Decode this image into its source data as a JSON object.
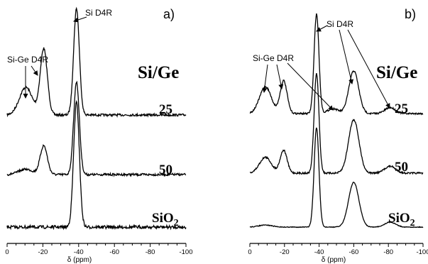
{
  "chart_data": [
    {
      "panel": "a)",
      "type": "line",
      "xlabel": "δ (ppm)",
      "xlim": [
        0,
        -100
      ],
      "xticks": [
        0,
        -20,
        -40,
        -60,
        -80,
        -100
      ],
      "group_label": "Si/Ge",
      "annotations": [
        "Si-Ge D4R",
        "Si D4R"
      ],
      "series": [
        {
          "name": "25",
          "peaks": [
            {
              "x": -10.5,
              "h": 0.26,
              "w": 3.6
            },
            {
              "x": -20.5,
              "h": 0.62,
              "w": 2.0
            },
            {
              "x": -38.8,
              "h": 1.0,
              "w": 1.6
            }
          ]
        },
        {
          "name": "50",
          "peaks": [
            {
              "x": -10.5,
              "h": 0.05,
              "w": 4.0
            },
            {
              "x": -20.5,
              "h": 0.27,
              "w": 2.0
            },
            {
              "x": -38.8,
              "h": 0.87,
              "w": 1.6
            }
          ]
        },
        {
          "name": "SiO2",
          "peaks": [
            {
              "x": -38.8,
              "h": 1.17,
              "w": 1.6
            }
          ]
        }
      ]
    },
    {
      "panel": "b)",
      "type": "line",
      "xlabel": "δ (ppm)",
      "xlim": [
        0,
        -100
      ],
      "xticks": [
        0,
        -20,
        -40,
        -60,
        -80,
        -100
      ],
      "group_label": "Si/Ge",
      "annotations": [
        "Si-Ge D4R",
        "Si D4R"
      ],
      "series": [
        {
          "name": "25",
          "peaks": [
            {
              "x": -9.0,
              "h": 0.27,
              "w": 3.4
            },
            {
              "x": -19.5,
              "h": 0.33,
              "w": 2.0
            },
            {
              "x": -38.5,
              "h": 1.0,
              "w": 1.4
            },
            {
              "x": -48.0,
              "h": 0.05,
              "w": 3.0
            },
            {
              "x": -60.0,
              "h": 0.43,
              "w": 2.8
            },
            {
              "x": -81.0,
              "h": 0.06,
              "w": 3.0
            }
          ]
        },
        {
          "name": "50",
          "peaks": [
            {
              "x": -9.0,
              "h": 0.16,
              "w": 3.4
            },
            {
              "x": -19.5,
              "h": 0.23,
              "w": 2.0
            },
            {
              "x": -38.5,
              "h": 1.0,
              "w": 1.4
            },
            {
              "x": -60.0,
              "h": 0.54,
              "w": 3.0
            },
            {
              "x": -81.0,
              "h": 0.07,
              "w": 3.2
            }
          ]
        },
        {
          "name": "SiO2",
          "peaks": [
            {
              "x": -9.0,
              "h": 0.02,
              "w": 4.0
            },
            {
              "x": -38.5,
              "h": 1.0,
              "w": 1.4
            },
            {
              "x": -60.0,
              "h": 0.45,
              "w": 3.0
            },
            {
              "x": -81.0,
              "h": 0.05,
              "w": 3.2
            }
          ]
        }
      ]
    }
  ]
}
